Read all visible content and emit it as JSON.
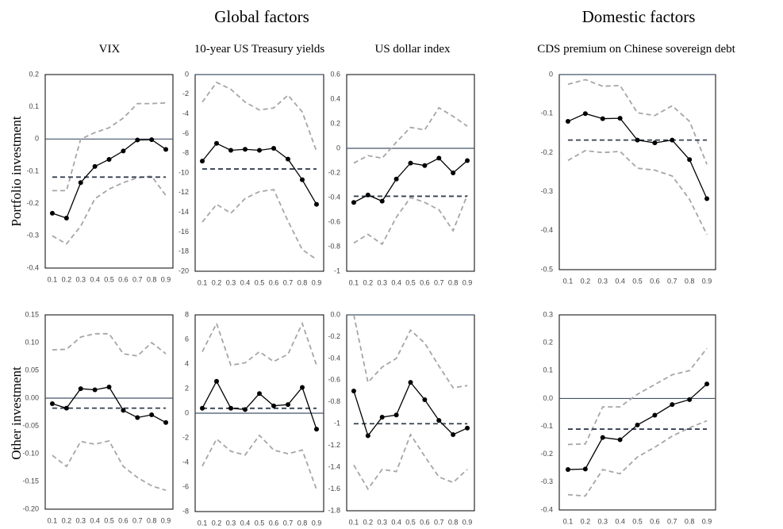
{
  "headers": {
    "groups": [
      "Global factors",
      "Domestic factors"
    ],
    "columns": [
      "VIX",
      "10-year US Treasury yields",
      "US dollar index",
      "CDS premium on Chinese sovereign debt"
    ],
    "rows": [
      "Portfolio investment",
      "Other investment"
    ]
  },
  "chart_data": [
    {
      "type": "line",
      "categories": [
        "0.1",
        "0.2",
        "0.3",
        "0.4",
        "0.5",
        "0.6",
        "0.7",
        "0.8",
        "0.9"
      ],
      "ylim": [
        -0.4,
        0.2
      ],
      "yticks": [
        0.2,
        0.1,
        0,
        -0.1,
        -0.2,
        -0.3,
        -0.4
      ],
      "zero_line": true,
      "series": [
        {
          "color": "#a6a6a6",
          "dashed": true,
          "values": [
            -0.16,
            -0.16,
            0.0,
            0.02,
            0.035,
            0.065,
            0.11,
            0.11,
            0.112
          ]
        },
        {
          "color": "#a6a6a6",
          "dashed": true,
          "values": [
            -0.3,
            -0.325,
            -0.27,
            -0.185,
            -0.155,
            -0.135,
            -0.12,
            -0.115,
            -0.175
          ]
        },
        {
          "color": "#333f50",
          "dashed": true,
          "values": [
            -0.118,
            -0.118,
            -0.118,
            -0.118,
            -0.118,
            -0.118,
            -0.118,
            -0.118,
            -0.118
          ]
        },
        {
          "color": "#000000",
          "markers": true,
          "values": [
            -0.23,
            -0.245,
            -0.135,
            -0.085,
            -0.063,
            -0.037,
            -0.003,
            -0.002,
            -0.032
          ]
        }
      ]
    },
    {
      "type": "line",
      "categories": [
        "0.1",
        "0.2",
        "0.3",
        "0.4",
        "0.5",
        "0.6",
        "0.7",
        "0.8",
        "0.9"
      ],
      "ylim": [
        -20,
        0
      ],
      "yticks": [
        0,
        -2,
        -4,
        -6,
        -8,
        -10,
        -12,
        -14,
        -16,
        -18,
        -20
      ],
      "zero_line": true,
      "series": [
        {
          "color": "#a6a6a6",
          "dashed": true,
          "values": [
            -2.8,
            -0.8,
            -1.5,
            -2.8,
            -3.6,
            -3.4,
            -2.1,
            -3.8,
            -7.8
          ]
        },
        {
          "color": "#a6a6a6",
          "dashed": true,
          "values": [
            -15,
            -13.2,
            -14.1,
            -12.6,
            -11.9,
            -11.7,
            -14.9,
            -17.8,
            -18.8
          ]
        },
        {
          "color": "#333f50",
          "dashed": true,
          "values": [
            -9.6,
            -9.6,
            -9.6,
            -9.6,
            -9.6,
            -9.6,
            -9.6,
            -9.6,
            -9.6
          ]
        },
        {
          "color": "#000000",
          "markers": true,
          "values": [
            -8.8,
            -7.0,
            -7.7,
            -7.6,
            -7.7,
            -7.5,
            -8.6,
            -10.7,
            -13.2
          ]
        }
      ]
    },
    {
      "type": "line",
      "categories": [
        "0.1",
        "0.2",
        "0.3",
        "0.4",
        "0.5",
        "0.6",
        "0.7",
        "0.8",
        "0.9"
      ],
      "ylim": [
        -1,
        0.6
      ],
      "yticks": [
        0.6,
        0.4,
        0.2,
        0,
        -0.2,
        -0.4,
        -0.6,
        -0.8,
        -1
      ],
      "zero_line": true,
      "series": [
        {
          "color": "#a6a6a6",
          "dashed": true,
          "values": [
            -0.12,
            -0.06,
            -0.08,
            0.05,
            0.17,
            0.15,
            0.33,
            0.26,
            0.18
          ]
        },
        {
          "color": "#a6a6a6",
          "dashed": true,
          "values": [
            -0.77,
            -0.7,
            -0.78,
            -0.56,
            -0.4,
            -0.44,
            -0.5,
            -0.67,
            -0.38
          ]
        },
        {
          "color": "#333f50",
          "dashed": true,
          "values": [
            -0.39,
            -0.39,
            -0.39,
            -0.39,
            -0.39,
            -0.39,
            -0.39,
            -0.39,
            -0.39
          ]
        },
        {
          "color": "#000000",
          "markers": true,
          "values": [
            -0.44,
            -0.38,
            -0.43,
            -0.25,
            -0.12,
            -0.14,
            -0.08,
            -0.2,
            -0.1
          ]
        }
      ]
    },
    {
      "type": "line",
      "categories": [
        "0.1",
        "0.2",
        "0.3",
        "0.4",
        "0.5",
        "0.6",
        "0.7",
        "0.8",
        "0.9"
      ],
      "ylim": [
        -0.5,
        0
      ],
      "yticks": [
        0,
        -0.1,
        -0.2,
        -0.3,
        -0.4,
        -0.5
      ],
      "zero_line": true,
      "series": [
        {
          "color": "#a6a6a6",
          "dashed": true,
          "values": [
            -0.025,
            -0.013,
            -0.03,
            -0.028,
            -0.098,
            -0.105,
            -0.08,
            -0.12,
            -0.23
          ]
        },
        {
          "color": "#a6a6a6",
          "dashed": true,
          "values": [
            -0.22,
            -0.195,
            -0.2,
            -0.197,
            -0.24,
            -0.245,
            -0.26,
            -0.32,
            -0.41
          ]
        },
        {
          "color": "#333f50",
          "dashed": true,
          "values": [
            -0.168,
            -0.168,
            -0.168,
            -0.168,
            -0.168,
            -0.168,
            -0.168,
            -0.168,
            -0.168
          ]
        },
        {
          "color": "#000000",
          "markers": true,
          "values": [
            -0.12,
            -0.1,
            -0.113,
            -0.112,
            -0.168,
            -0.175,
            -0.168,
            -0.218,
            -0.318
          ]
        }
      ]
    },
    {
      "type": "line",
      "categories": [
        "0.1",
        "0.2",
        "0.3",
        "0.4",
        "0.5",
        "0.6",
        "0.7",
        "0.8",
        "0.9"
      ],
      "ylim": [
        -0.2,
        0.15
      ],
      "yticks": [
        0.15,
        {
          "value": 0.1,
          "label": "0.10"
        },
        0.05,
        {
          "value": 0,
          "label": "0.00"
        },
        -0.05,
        {
          "value": -0.1,
          "label": "-0.10"
        },
        -0.15,
        {
          "value": -0.2,
          "label": "-0.20"
        }
      ],
      "zero_line": true,
      "series": [
        {
          "color": "#a6a6a6",
          "dashed": true,
          "values": [
            0.087,
            0.088,
            0.11,
            0.116,
            0.116,
            0.08,
            0.076,
            0.1,
            0.08
          ]
        },
        {
          "color": "#a6a6a6",
          "dashed": true,
          "values": [
            -0.103,
            -0.123,
            -0.078,
            -0.083,
            -0.077,
            -0.123,
            -0.143,
            -0.158,
            -0.166
          ]
        },
        {
          "color": "#333f50",
          "dashed": true,
          "values": [
            -0.018,
            -0.018,
            -0.018,
            -0.018,
            -0.018,
            -0.018,
            -0.018,
            -0.018,
            -0.018
          ]
        },
        {
          "color": "#000000",
          "markers": true,
          "values": [
            -0.01,
            -0.018,
            0.017,
            0.015,
            0.02,
            -0.022,
            -0.035,
            -0.03,
            -0.044
          ]
        }
      ]
    },
    {
      "type": "line",
      "categories": [
        "0.1",
        "0.2",
        "0.3",
        "0.4",
        "0.5",
        "0.6",
        "0.7",
        "0.8",
        "0.9"
      ],
      "ylim": [
        -8,
        8
      ],
      "yticks": [
        8,
        6,
        4,
        2,
        0,
        -2,
        -4,
        -6,
        -8
      ],
      "zero_line": true,
      "series": [
        {
          "color": "#a6a6a6",
          "dashed": true,
          "values": [
            5,
            7.3,
            3.9,
            4.1,
            5.0,
            4.2,
            4.8,
            7.3,
            3.9
          ]
        },
        {
          "color": "#a6a6a6",
          "dashed": true,
          "values": [
            -4.3,
            -2.1,
            -3.1,
            -3.4,
            -1.8,
            -3.0,
            -3.3,
            -3.0,
            -6.2
          ]
        },
        {
          "color": "#333f50",
          "dashed": true,
          "values": [
            0.4,
            0.4,
            0.4,
            0.4,
            0.4,
            0.4,
            0.4,
            0.4,
            0.4
          ]
        },
        {
          "color": "#000000",
          "markers": true,
          "values": [
            0.4,
            2.6,
            0.4,
            0.3,
            1.6,
            0.6,
            0.7,
            2.1,
            -1.3
          ]
        }
      ]
    },
    {
      "type": "line",
      "categories": [
        "0.1",
        "0.2",
        "0.3",
        "0.4",
        "0.5",
        "0.6",
        "0.7",
        "0.8",
        "0.9"
      ],
      "ylim": [
        -1.8,
        0
      ],
      "yticks": [
        {
          "value": 0,
          "label": "0.0"
        },
        -0.2,
        -0.4,
        -0.6,
        -0.8,
        -1.0,
        -1.2,
        -1.4,
        -1.6,
        -1.8
      ],
      "zero_line": true,
      "series": [
        {
          "color": "#a6a6a6",
          "dashed": true,
          "values": [
            0.0,
            -0.62,
            -0.48,
            -0.4,
            -0.14,
            -0.26,
            -0.47,
            -0.67,
            -0.65
          ]
        },
        {
          "color": "#a6a6a6",
          "dashed": true,
          "values": [
            -1.38,
            -1.6,
            -1.42,
            -1.44,
            -1.1,
            -1.3,
            -1.49,
            -1.54,
            -1.42
          ]
        },
        {
          "color": "#333f50",
          "dashed": true,
          "values": [
            -1.0,
            -1.0,
            -1.0,
            -1.0,
            -1.0,
            -1.0,
            -1.0,
            -1.0,
            -1.0
          ]
        },
        {
          "color": "#000000",
          "markers": true,
          "values": [
            -0.7,
            -1.11,
            -0.94,
            -0.92,
            -0.62,
            -0.78,
            -0.97,
            -1.1,
            -1.04
          ]
        }
      ]
    },
    {
      "type": "line",
      "categories": [
        "0.1",
        "0.2",
        "0.3",
        "0.4",
        "0.5",
        "0.6",
        "0.7",
        "0.8",
        "0.9"
      ],
      "ylim": [
        -0.4,
        0.3
      ],
      "yticks": [
        0.3,
        0.2,
        0.1,
        {
          "value": 0,
          "label": "0.0"
        },
        -0.1,
        -0.2,
        -0.3,
        -0.4
      ],
      "zero_line": true,
      "series": [
        {
          "color": "#a6a6a6",
          "dashed": true,
          "values": [
            -0.165,
            -0.163,
            -0.03,
            -0.03,
            0.015,
            0.05,
            0.085,
            0.1,
            0.18
          ]
        },
        {
          "color": "#a6a6a6",
          "dashed": true,
          "values": [
            -0.345,
            -0.35,
            -0.255,
            -0.27,
            -0.21,
            -0.175,
            -0.135,
            -0.105,
            -0.08
          ]
        },
        {
          "color": "#333f50",
          "dashed": true,
          "values": [
            -0.11,
            -0.11,
            -0.11,
            -0.11,
            -0.11,
            -0.11,
            -0.11,
            -0.11,
            -0.11
          ]
        },
        {
          "color": "#000000",
          "markers": true,
          "values": [
            -0.255,
            -0.253,
            -0.14,
            -0.148,
            -0.095,
            -0.06,
            -0.022,
            -0.004,
            0.052
          ]
        }
      ]
    }
  ]
}
